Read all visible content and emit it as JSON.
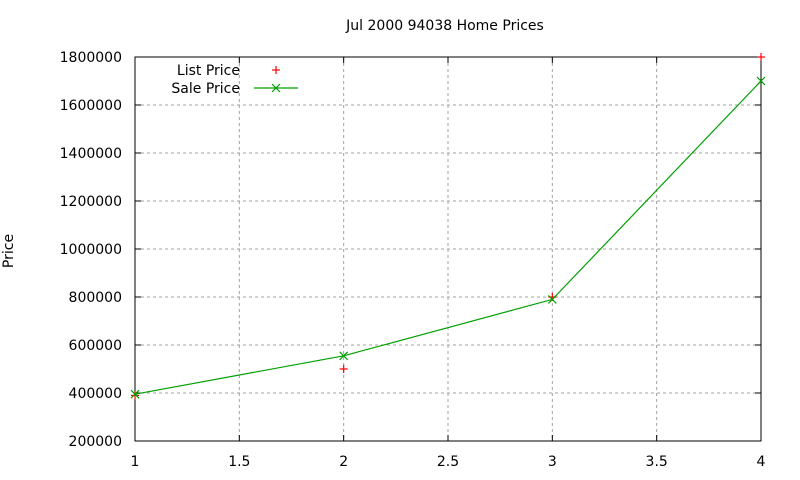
{
  "chart_data": {
    "type": "line",
    "title": "Jul 2000 94038 Home Prices",
    "xlabel": "",
    "ylabel": "Price",
    "x": [
      1,
      2,
      3,
      4
    ],
    "xlim": [
      1,
      4
    ],
    "ylim": [
      200000,
      1800000
    ],
    "xticks": [
      "1",
      "1.5",
      "2",
      "2.5",
      "3",
      "3.5",
      "4"
    ],
    "yticks": [
      "200000",
      "400000",
      "600000",
      "800000",
      "1000000",
      "1200000",
      "1400000",
      "1600000",
      "1800000"
    ],
    "grid": true,
    "legend_position": "top-left",
    "series": [
      {
        "name": "List Price",
        "style": "points",
        "marker": "+",
        "color": "#ff0000",
        "values": [
          390000,
          500000,
          800000,
          1800000
        ]
      },
      {
        "name": "Sale Price",
        "style": "linespoints",
        "marker": "x",
        "color": "#00a000",
        "values": [
          395000,
          555000,
          790000,
          1700000
        ]
      }
    ]
  }
}
